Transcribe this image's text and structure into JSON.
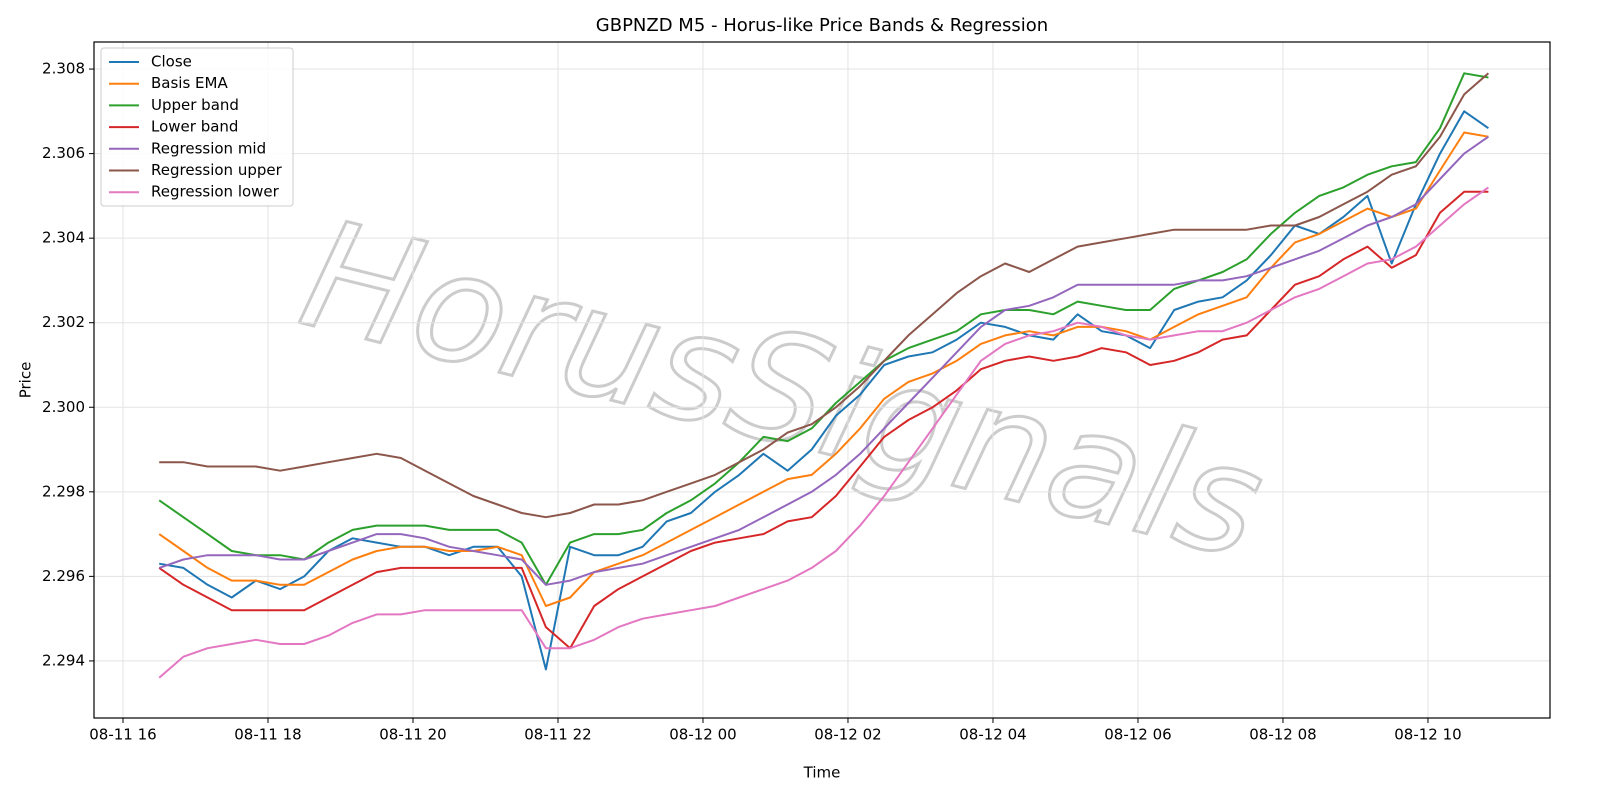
{
  "chart_data": {
    "type": "line",
    "title": "GBPNZD M5 - Horus-like Price Bands & Regression",
    "xlabel": "Time",
    "ylabel": "Price",
    "watermark": "HorusSignals",
    "grid": true,
    "legend": "upper left",
    "xlim": [
      "08-11 15:36",
      "08-12 11:41"
    ],
    "xticks": [
      "08-11 16",
      "08-11 18",
      "08-11 20",
      "08-11 22",
      "08-12 00",
      "08-12 02",
      "08-12 04",
      "08-12 06",
      "08-12 08",
      "08-12 10"
    ],
    "ylim": [
      2.29265,
      2.30864
    ],
    "yticks": [
      2.294,
      2.296,
      2.298,
      {
        "value": 2.3,
        "label": "2.300"
      },
      2.302,
      2.304,
      2.306,
      2.308
    ],
    "x": [
      "08-11 16:30",
      "08-11 16:50",
      "08-11 17:10",
      "08-11 17:30",
      "08-11 17:50",
      "08-11 18:10",
      "08-11 18:30",
      "08-11 18:50",
      "08-11 19:10",
      "08-11 19:30",
      "08-11 19:50",
      "08-11 20:10",
      "08-11 20:30",
      "08-11 20:50",
      "08-11 21:10",
      "08-11 21:30",
      "08-11 21:50",
      "08-11 22:10",
      "08-11 22:30",
      "08-11 22:50",
      "08-11 23:10",
      "08-11 23:30",
      "08-11 23:50",
      "08-12 00:10",
      "08-12 00:30",
      "08-12 00:50",
      "08-12 01:10",
      "08-12 01:30",
      "08-12 01:50",
      "08-12 02:10",
      "08-12 02:30",
      "08-12 02:50",
      "08-12 03:10",
      "08-12 03:30",
      "08-12 03:50",
      "08-12 04:10",
      "08-12 04:30",
      "08-12 04:50",
      "08-12 05:10",
      "08-12 05:30",
      "08-12 05:50",
      "08-12 06:10",
      "08-12 06:30",
      "08-12 06:50",
      "08-12 07:10",
      "08-12 07:30",
      "08-12 07:50",
      "08-12 08:10",
      "08-12 08:30",
      "08-12 08:50",
      "08-12 09:10",
      "08-12 09:30",
      "08-12 09:50",
      "08-12 10:10",
      "08-12 10:30",
      "08-12 10:50"
    ],
    "series": [
      {
        "name": "Close",
        "color": "#1f77b4",
        "values": [
          2.2963,
          2.2962,
          2.2958,
          2.2955,
          2.2959,
          2.2957,
          2.296,
          2.2966,
          2.2969,
          2.2968,
          2.2967,
          2.2967,
          2.2965,
          2.2967,
          2.2967,
          2.296,
          2.2938,
          2.2967,
          2.2965,
          2.2965,
          2.2967,
          2.2973,
          2.2975,
          2.298,
          2.2984,
          2.2989,
          2.2985,
          2.299,
          2.2998,
          2.3003,
          2.301,
          2.3012,
          2.3013,
          2.3016,
          2.302,
          2.3019,
          2.3017,
          2.3016,
          2.3022,
          2.3018,
          2.3017,
          2.3014,
          2.3023,
          2.3025,
          2.3026,
          2.303,
          2.3036,
          2.3043,
          2.3041,
          2.3045,
          2.305,
          2.3034,
          2.3048,
          2.306,
          2.307,
          2.3066
        ]
      },
      {
        "name": "Basis EMA",
        "color": "#ff7f0e",
        "values": [
          2.297,
          2.2966,
          2.2962,
          2.2959,
          2.2959,
          2.2958,
          2.2958,
          2.2961,
          2.2964,
          2.2966,
          2.2967,
          2.2967,
          2.2966,
          2.2966,
          2.2967,
          2.2965,
          2.2953,
          2.2955,
          2.2961,
          2.2963,
          2.2965,
          2.2968,
          2.2971,
          2.2974,
          2.2977,
          2.298,
          2.2983,
          2.2984,
          2.2989,
          2.2995,
          2.3002,
          2.3006,
          2.3008,
          2.3011,
          2.3015,
          2.3017,
          2.3018,
          2.3017,
          2.3019,
          2.3019,
          2.3018,
          2.3016,
          2.3019,
          2.3022,
          2.3024,
          2.3026,
          2.3033,
          2.3039,
          2.3041,
          2.3044,
          2.3047,
          2.3045,
          2.3047,
          2.3056,
          2.3065,
          2.3064
        ]
      },
      {
        "name": "Upper band",
        "color": "#2ca02c",
        "values": [
          2.2978,
          2.2974,
          2.297,
          2.2966,
          2.2965,
          2.2965,
          2.2964,
          2.2968,
          2.2971,
          2.2972,
          2.2972,
          2.2972,
          2.2971,
          2.2971,
          2.2971,
          2.2968,
          2.2958,
          2.2968,
          2.297,
          2.297,
          2.2971,
          2.2975,
          2.2978,
          2.2982,
          2.2987,
          2.2993,
          2.2992,
          2.2995,
          2.3001,
          2.3006,
          2.3011,
          2.3014,
          2.3016,
          2.3018,
          2.3022,
          2.3023,
          2.3023,
          2.3022,
          2.3025,
          2.3024,
          2.3023,
          2.3023,
          2.3028,
          2.303,
          2.3032,
          2.3035,
          2.3041,
          2.3046,
          2.305,
          2.3052,
          2.3055,
          2.3057,
          2.3058,
          2.3066,
          2.3079,
          2.3078
        ]
      },
      {
        "name": "Lower band",
        "color": "#d62728",
        "values": [
          2.2962,
          2.2958,
          2.2955,
          2.2952,
          2.2952,
          2.2952,
          2.2952,
          2.2955,
          2.2958,
          2.2961,
          2.2962,
          2.2962,
          2.2962,
          2.2962,
          2.2962,
          2.2962,
          2.2948,
          2.2943,
          2.2953,
          2.2957,
          2.296,
          2.2963,
          2.2966,
          2.2968,
          2.2969,
          2.297,
          2.2973,
          2.2974,
          2.2979,
          2.2986,
          2.2993,
          2.2997,
          2.3,
          2.3004,
          2.3009,
          2.3011,
          2.3012,
          2.3011,
          2.3012,
          2.3014,
          2.3013,
          2.301,
          2.3011,
          2.3013,
          2.3016,
          2.3017,
          2.3023,
          2.3029,
          2.3031,
          2.3035,
          2.3038,
          2.3033,
          2.3036,
          2.3046,
          2.3051,
          2.3051
        ]
      },
      {
        "name": "Regression mid",
        "color": "#9467bd",
        "values": [
          2.2962,
          2.2964,
          2.2965,
          2.2965,
          2.2965,
          2.2964,
          2.2964,
          2.2966,
          2.2968,
          2.297,
          2.297,
          2.2969,
          2.2967,
          2.2966,
          2.2965,
          2.2964,
          2.2958,
          2.2959,
          2.2961,
          2.2962,
          2.2963,
          2.2965,
          2.2967,
          2.2969,
          2.2971,
          2.2974,
          2.2977,
          2.298,
          2.2984,
          2.2989,
          2.2995,
          2.3001,
          2.3007,
          2.3013,
          2.3019,
          2.3023,
          2.3024,
          2.3026,
          2.3029,
          2.3029,
          2.3029,
          2.3029,
          2.3029,
          2.303,
          2.303,
          2.3031,
          2.3033,
          2.3035,
          2.3037,
          2.304,
          2.3043,
          2.3045,
          2.3048,
          2.3054,
          2.306,
          2.3064
        ]
      },
      {
        "name": "Regression upper",
        "color": "#8c564b",
        "values": [
          2.2987,
          2.2987,
          2.2986,
          2.2986,
          2.2986,
          2.2985,
          2.2986,
          2.2987,
          2.2988,
          2.2989,
          2.2988,
          2.2985,
          2.2982,
          2.2979,
          2.2977,
          2.2975,
          2.2974,
          2.2975,
          2.2977,
          2.2977,
          2.2978,
          2.298,
          2.2982,
          2.2984,
          2.2987,
          2.299,
          2.2994,
          2.2996,
          2.3,
          2.3005,
          2.3011,
          2.3017,
          2.3022,
          2.3027,
          2.3031,
          2.3034,
          2.3032,
          2.3035,
          2.3038,
          2.3039,
          2.304,
          2.3041,
          2.3042,
          2.3042,
          2.3042,
          2.3042,
          2.3043,
          2.3043,
          2.3045,
          2.3048,
          2.3051,
          2.3055,
          2.3057,
          2.3064,
          2.3074,
          2.3079
        ]
      },
      {
        "name": "Regression lower",
        "color": "#e377c2",
        "values": [
          2.2936,
          2.2941,
          2.2943,
          2.2944,
          2.2945,
          2.2944,
          2.2944,
          2.2946,
          2.2949,
          2.2951,
          2.2951,
          2.2952,
          2.2952,
          2.2952,
          2.2952,
          2.2952,
          2.2943,
          2.2943,
          2.2945,
          2.2948,
          2.295,
          2.2951,
          2.2952,
          2.2953,
          2.2955,
          2.2957,
          2.2959,
          2.2962,
          2.2966,
          2.2972,
          2.2979,
          2.2987,
          2.2995,
          2.3003,
          2.3011,
          2.3015,
          2.3017,
          2.3018,
          2.302,
          2.3019,
          2.3017,
          2.3016,
          2.3017,
          2.3018,
          2.3018,
          2.302,
          2.3023,
          2.3026,
          2.3028,
          2.3031,
          2.3034,
          2.3035,
          2.3038,
          2.3043,
          2.3048,
          2.3052
        ]
      }
    ]
  }
}
